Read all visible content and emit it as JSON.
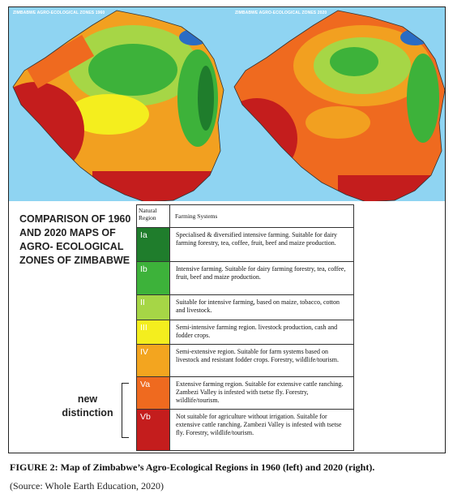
{
  "maps": [
    {
      "title": "ZIMBABWE AGRO-ECOLOGICAL ZONES 1960"
    },
    {
      "title": "ZIMBABWE AGRO-ECOLOGICAL ZONES 2020"
    }
  ],
  "comparison_title": [
    "COMPARISON OF 1960",
    "AND 2020 MAPS OF",
    "AGRO- ECOLOGICAL",
    "ZONES OF ZIMBABWE"
  ],
  "new_distinction": "new distinction",
  "table": {
    "header": [
      "Natural Region",
      "Farming Systems"
    ],
    "rows": [
      {
        "region": "Ia",
        "color": "#1f7d2c",
        "text": "Specialised & diversified intensive farming. Suitable for dairy farming forestry, tea, coffee, fruit, beef and maize production."
      },
      {
        "region": "Ib",
        "color": "#3db23a",
        "text": "Intensive farming. Suitable for dairy farming forestry, tea, coffee, fruit, beef and maize production."
      },
      {
        "region": "II",
        "color": "#a6d646",
        "text": "Suitable for intensive farming, based on maize, tobacco, cotton and livestock."
      },
      {
        "region": "III",
        "color": "#f4ee1e",
        "text": "Semi-intensive farming region. livestock production, cash and fodder crops."
      },
      {
        "region": "IV",
        "color": "#f3a51f",
        "text": "Semi-extensive region. Suitable for farm systems based on livestock and resistant fodder crops. Forestry, wildlife/tourism."
      },
      {
        "region": "Va",
        "color": "#ef6a1f",
        "text": "Extensive farming region. Suitable for extensive cattle ranching. Zambezi Valley is infested with tsetse fly. Forestry, wildlife/tourism."
      },
      {
        "region": "Vb",
        "color": "#c41d1d",
        "text": "Not suitable for agriculture without irrigation. Suitable for extensive cattle ranching. Zambezi Valley is infested with tsetse fly. Forestry, wildlife/tourism."
      }
    ]
  },
  "caption": "FIGURE 2: Map of Zimbabwe’s Agro-Ecological Regions in 1960 (left) and 2020 (right).",
  "source": "(Source: Whole Earth Education, 2020)"
}
